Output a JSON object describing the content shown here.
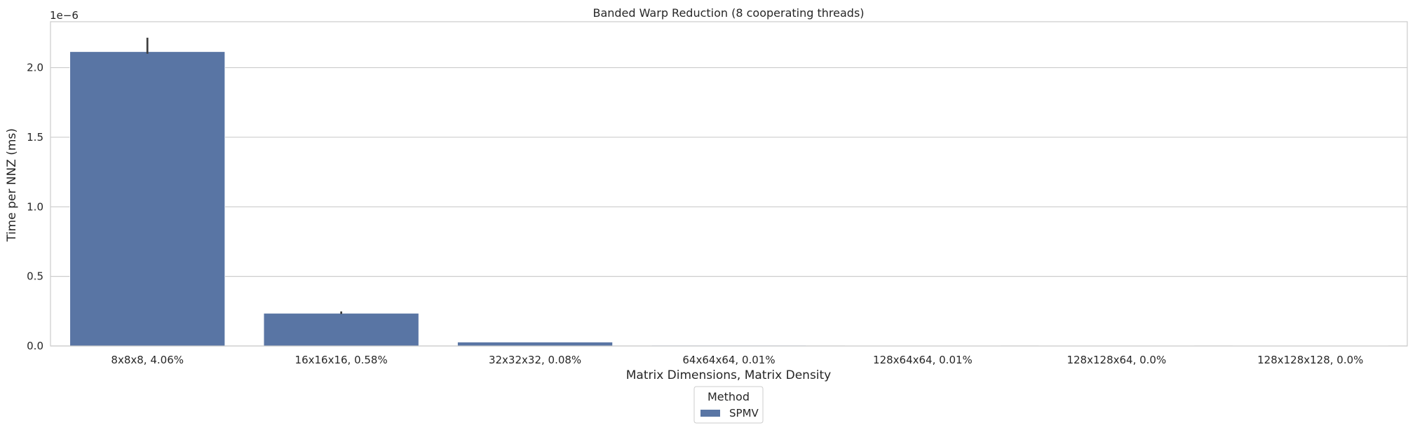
{
  "chart_data": {
    "type": "bar",
    "title": "Banded Warp Reduction (8 cooperating threads)",
    "xlabel": "Matrix Dimensions, Matrix Density",
    "ylabel": "Time per NNZ (ms)",
    "offset_label": "1e−6",
    "categories": [
      "8x8x8, 4.06%",
      "16x16x16, 0.58%",
      "32x32x32, 0.08%",
      "64x64x64, 0.01%",
      "128x64x64, 0.01%",
      "128x128x64, 0.0%",
      "128x128x128, 0.0%"
    ],
    "series": [
      {
        "name": "SPMV",
        "color": "#5975a4",
        "values": [
          2.115,
          0.235,
          0.028,
          0.005,
          0.004,
          0.004,
          0.004
        ],
        "error_high": [
          2.215,
          0.248,
          0.03,
          0.006,
          0.005,
          0.005,
          0.005
        ],
        "error_low": [
          2.1,
          0.23,
          0.027,
          0.005,
          0.004,
          0.004,
          0.004
        ]
      }
    ],
    "ylim": [
      0,
      2.33
    ],
    "yticks": [
      0.0,
      0.5,
      1.0,
      1.5,
      2.0
    ],
    "ytick_labels": [
      "0.0",
      "0.5",
      "1.0",
      "1.5",
      "2.0"
    ],
    "grid": "horizontal",
    "legend": {
      "title": "Method",
      "placement": "below-center"
    }
  }
}
